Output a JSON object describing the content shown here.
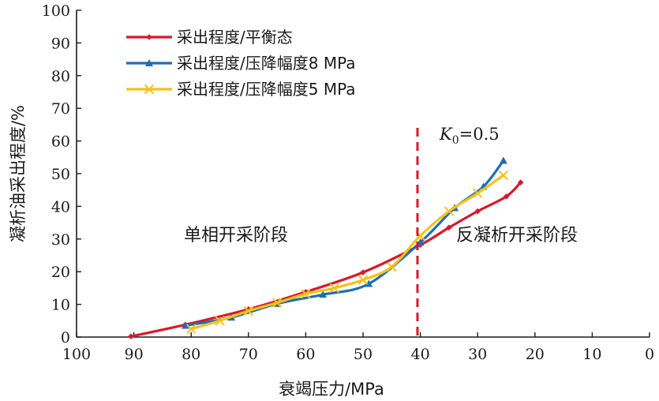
{
  "chart_data": {
    "type": "line",
    "xlabel": "衰竭压力/MPa",
    "ylabel": "凝析油采出程度/%",
    "xlim": [
      100,
      0
    ],
    "ylim": [
      0,
      100
    ],
    "x_ticks": [
      "100",
      "90",
      "80",
      "70",
      "60",
      "50",
      "40",
      "30",
      "20",
      "10",
      "0"
    ],
    "y_ticks": [
      "0",
      "10",
      "20",
      "30",
      "40",
      "50",
      "60",
      "70",
      "80",
      "90",
      "100"
    ],
    "grid": false,
    "legend_position": "top-left",
    "series": [
      {
        "name": "采出程度/平衡态",
        "color": "#d7192c",
        "marker": "diamond",
        "points": [
          [
            90.5,
            0.2
          ],
          [
            81,
            3.8
          ],
          [
            70,
            8.5
          ],
          [
            60,
            13.8
          ],
          [
            50,
            19.8
          ],
          [
            40,
            28.2
          ],
          [
            35,
            33.5
          ],
          [
            30,
            38.5
          ],
          [
            25,
            43.0
          ],
          [
            22.5,
            47.3
          ]
        ]
      },
      {
        "name": "采出程度/压降幅度8 MPa",
        "color": "#1f6eb4",
        "marker": "triangle",
        "points": [
          [
            81,
            3.5
          ],
          [
            73,
            6.0
          ],
          [
            65,
            10.2
          ],
          [
            57,
            13.0
          ],
          [
            49,
            16.3
          ],
          [
            40,
            29.0
          ],
          [
            34,
            39.5
          ],
          [
            29,
            46.0
          ],
          [
            25.5,
            54.0
          ]
        ]
      },
      {
        "name": "采出程度/压降幅度5 MPa",
        "color": "#f5c21b",
        "marker": "x",
        "points": [
          [
            80,
            2.5
          ],
          [
            75,
            5.0
          ],
          [
            70,
            8.0
          ],
          [
            65,
            10.5
          ],
          [
            60,
            13.2
          ],
          [
            55,
            15.0
          ],
          [
            50,
            17.5
          ],
          [
            45,
            21.5
          ],
          [
            40,
            31.0
          ],
          [
            35,
            38.5
          ],
          [
            30,
            44.0
          ],
          [
            25.5,
            49.5
          ]
        ]
      }
    ],
    "vline": {
      "x": 40.5,
      "label_k": "K",
      "label_sub": "0",
      "label_rest": "=0.5",
      "color": "#d7192c"
    },
    "annotations": [
      {
        "text": "单相开采阶段"
      },
      {
        "text": "反凝析开采阶段"
      }
    ]
  }
}
